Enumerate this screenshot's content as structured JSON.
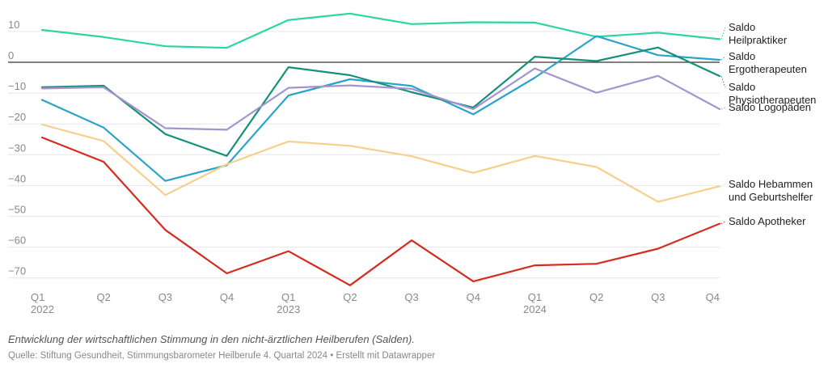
{
  "caption": "Entwicklung der wirtschaftlichen Stimmung in den nicht-ärztlichen Heilberufen (Salden).",
  "source": "Quelle: Stiftung Gesundheit, Stimmungsbarometer Heilberufe 4. Quartal 2024 • Erstellt mit Datawrapper",
  "chart_data": {
    "type": "line",
    "x": [
      "Q1 2022",
      "Q2 2022",
      "Q3 2022",
      "Q4 2022",
      "Q1 2023",
      "Q2 2023",
      "Q3 2023",
      "Q4 2023",
      "Q1 2024",
      "Q2 2024",
      "Q3 2024",
      "Q4 2024"
    ],
    "x_tick_labels": [
      {
        "quarter": "Q1",
        "year": "2022"
      },
      {
        "quarter": "Q2",
        "year": ""
      },
      {
        "quarter": "Q3",
        "year": ""
      },
      {
        "quarter": "Q4",
        "year": ""
      },
      {
        "quarter": "Q1",
        "year": "2023"
      },
      {
        "quarter": "Q2",
        "year": ""
      },
      {
        "quarter": "Q3",
        "year": ""
      },
      {
        "quarter": "Q4",
        "year": ""
      },
      {
        "quarter": "Q1",
        "year": "2024"
      },
      {
        "quarter": "Q2",
        "year": ""
      },
      {
        "quarter": "Q3",
        "year": ""
      },
      {
        "quarter": "Q4",
        "year": ""
      }
    ],
    "y_ticks": [
      "10",
      "0",
      "−10",
      "−20",
      "−30",
      "−40",
      "−50",
      "−60",
      "−70"
    ],
    "ylim": [
      -75,
      13
    ],
    "grid": true,
    "legend": "direct labels at line ends (right)",
    "series": [
      {
        "name": "Saldo Heilpraktiker",
        "label_lines": [
          "Saldo",
          "Heilpraktiker"
        ],
        "color": "#2dd4a4",
        "values": [
          10.5,
          8.2,
          5.2,
          4.7,
          13.7,
          15.8,
          12.4,
          13.0,
          12.9,
          8.3,
          9.6,
          7.5
        ]
      },
      {
        "name": "Saldo Ergotherapeuten",
        "label_lines": [
          "Saldo",
          "Ergotherapeuten"
        ],
        "color": "#2aa3c9",
        "values": [
          -12.2,
          -21.2,
          -38.5,
          -33.4,
          -10.8,
          -5.5,
          -7.7,
          -16.9,
          -5.0,
          8.5,
          2.3,
          0.8
        ]
      },
      {
        "name": "Saldo Physiotherapeuten",
        "label_lines": [
          "Saldo",
          "Physiotherapeuten"
        ],
        "color": "#17907a",
        "values": [
          -8.1,
          -7.6,
          -23.3,
          -30.4,
          -1.6,
          -4.2,
          -9.7,
          -14.7,
          1.8,
          0.4,
          4.8,
          -4.5
        ]
      },
      {
        "name": "Saldo Logopäden",
        "label_lines": [
          "Saldo Logopäden"
        ],
        "color": "#a593cf",
        "values": [
          -8.5,
          -8.1,
          -21.4,
          -21.9,
          -8.3,
          -7.5,
          -8.6,
          -15.2,
          -2.0,
          -9.9,
          -4.4,
          -15.2
        ]
      },
      {
        "name": "Saldo Hebammen und Geburtshelfer",
        "label_lines": [
          "Saldo Hebammen",
          "und Geburtshelfer"
        ],
        "color": "#f8cf8a",
        "values": [
          -20.2,
          -25.6,
          -43.1,
          -33.1,
          -25.7,
          -27.1,
          -30.5,
          -35.9,
          -30.4,
          -34.0,
          -45.3,
          -40.2
        ]
      },
      {
        "name": "Saldo Apotheker",
        "label_lines": [
          "Saldo Apotheker"
        ],
        "color": "#d42c1f",
        "values": [
          -24.4,
          -32.3,
          -54.4,
          -68.5,
          -61.3,
          -72.4,
          -57.8,
          -71.1,
          -65.9,
          -65.4,
          -60.5,
          -52.4
        ]
      }
    ]
  }
}
